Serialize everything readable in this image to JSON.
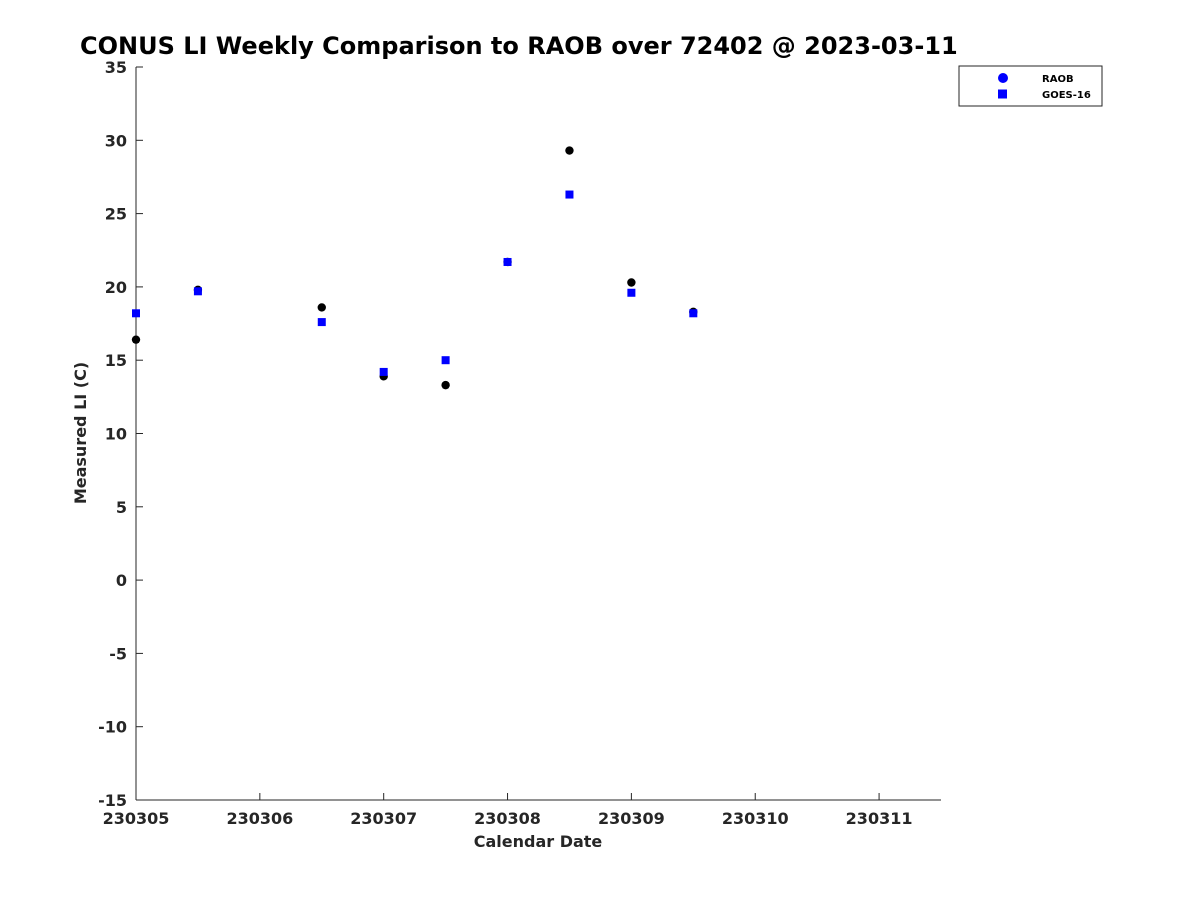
{
  "chart_data": {
    "type": "scatter",
    "title": "CONUS LI Weekly Comparison to RAOB over 72402 @ 2023-03-11",
    "xlabel": "Calendar Date",
    "ylabel": "Measured LI (C)",
    "xlim": [
      230305,
      230311.5
    ],
    "ylim": [
      -15,
      35
    ],
    "x_ticks": [
      230305,
      230306,
      230307,
      230308,
      230309,
      230310,
      230311
    ],
    "x_tick_labels": [
      "230305",
      "230306",
      "230307",
      "230308",
      "230309",
      "230310",
      "230311"
    ],
    "y_ticks": [
      35,
      30,
      25,
      20,
      15,
      10,
      5,
      0,
      -5,
      -10,
      -15
    ],
    "y_tick_labels": [
      "35",
      "30",
      "25",
      "20",
      "15",
      "10",
      "5",
      "0",
      "-5",
      "-10",
      "-15"
    ],
    "grid": false,
    "legend_position": "top-right",
    "series": [
      {
        "name": "RAOB",
        "marker": "circle",
        "color": "#000000",
        "legend_color": "#0000ff",
        "points": [
          {
            "x": 230305.0,
            "y": 16.4
          },
          {
            "x": 230305.5,
            "y": 19.8
          },
          {
            "x": 230306.5,
            "y": 18.6
          },
          {
            "x": 230307.0,
            "y": 13.9
          },
          {
            "x": 230307.5,
            "y": 13.3
          },
          {
            "x": 230308.0,
            "y": 21.7
          },
          {
            "x": 230308.5,
            "y": 29.3
          },
          {
            "x": 230309.0,
            "y": 20.3
          },
          {
            "x": 230309.5,
            "y": 18.3
          }
        ]
      },
      {
        "name": "GOES-16",
        "marker": "square",
        "color": "#0000ff",
        "legend_color": "#0000ff",
        "points": [
          {
            "x": 230305.0,
            "y": 18.2
          },
          {
            "x": 230305.5,
            "y": 19.7
          },
          {
            "x": 230306.5,
            "y": 17.6
          },
          {
            "x": 230307.0,
            "y": 14.2
          },
          {
            "x": 230307.5,
            "y": 15.0
          },
          {
            "x": 230308.0,
            "y": 21.7
          },
          {
            "x": 230308.5,
            "y": 26.3
          },
          {
            "x": 230309.0,
            "y": 19.6
          },
          {
            "x": 230309.5,
            "y": 18.2
          }
        ]
      }
    ]
  }
}
